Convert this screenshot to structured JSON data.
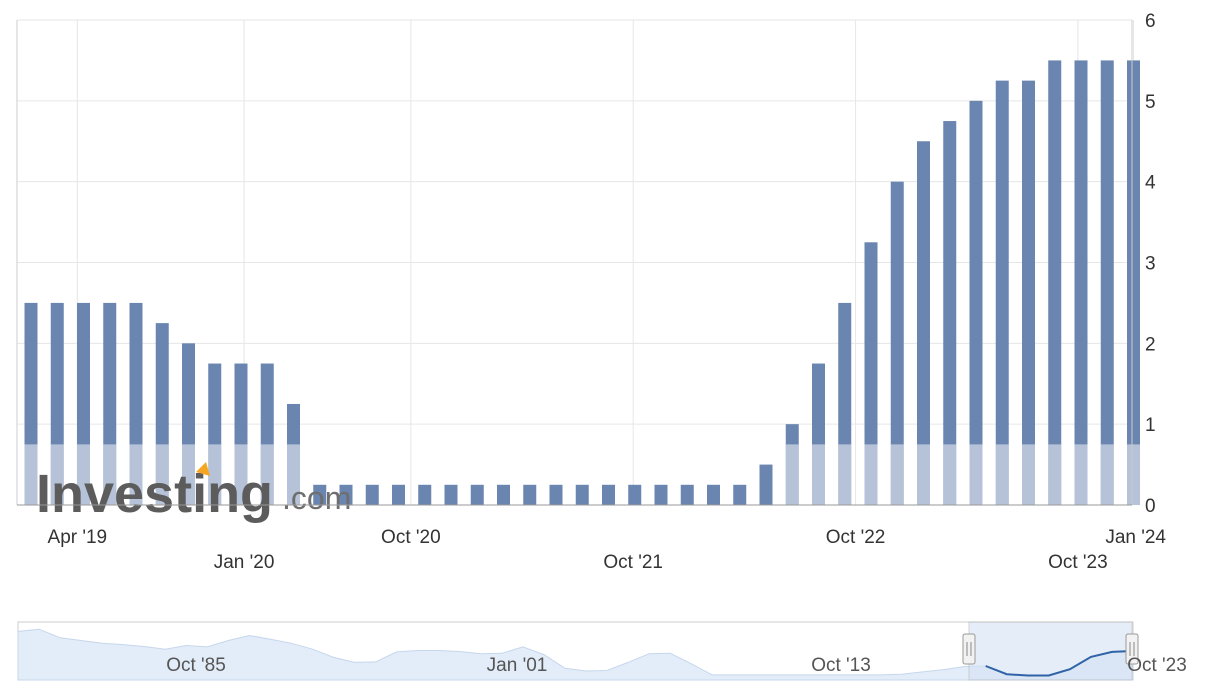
{
  "chart_data": {
    "type": "bar",
    "ylim": [
      0,
      6
    ],
    "y_ticks": [
      "0",
      "1",
      "2",
      "3",
      "4",
      "5",
      "6"
    ],
    "x_tick_labels": [
      {
        "label": "Apr '19",
        "row": 1,
        "date": "2019-04"
      },
      {
        "label": "Jan '20",
        "row": 2,
        "date": "2020-01"
      },
      {
        "label": "Oct '20",
        "row": 1,
        "date": "2020-10"
      },
      {
        "label": "Oct '21",
        "row": 2,
        "date": "2021-10"
      },
      {
        "label": "Oct '22",
        "row": 1,
        "date": "2022-10"
      },
      {
        "label": "Oct '23",
        "row": 2,
        "date": "2023-10"
      },
      {
        "label": "Jan '24",
        "row": 1,
        "date": "2024-01"
      }
    ],
    "grid": true,
    "y_axis_side": "right",
    "bar_color": "#6a85b0",
    "values": [
      2.5,
      2.5,
      2.5,
      2.5,
      2.5,
      2.25,
      2.0,
      1.75,
      1.75,
      1.75,
      1.25,
      0.25,
      0.25,
      0.25,
      0.25,
      0.25,
      0.25,
      0.25,
      0.25,
      0.25,
      0.25,
      0.25,
      0.25,
      0.25,
      0.25,
      0.25,
      0.25,
      0.25,
      0.5,
      1.0,
      1.75,
      2.5,
      3.25,
      4.0,
      4.5,
      4.75,
      5.0,
      5.25,
      5.25,
      5.5,
      5.5,
      5.5,
      5.5
    ]
  },
  "watermark": {
    "main": "Investing",
    "suffix": ".com"
  },
  "navigator": {
    "labels": [
      "Oct '85",
      "Jan '01",
      "Oct '13",
      "Oct '23"
    ],
    "overview_values": [
      9.8,
      10.3,
      8.4,
      7.8,
      7.2,
      6.9,
      6.5,
      5.9,
      6.7,
      6.4,
      7.8,
      8.9,
      8.1,
      7.2,
      5.9,
      4.1,
      3.0,
      3.1,
      5.3,
      5.6,
      5.6,
      5.4,
      4.9,
      5.0,
      6.4,
      4.7,
      1.7,
      1.1,
      1.2,
      3.0,
      4.9,
      5.0,
      2.7,
      0.25,
      0.25,
      0.25,
      0.25,
      0.25,
      0.25,
      0.25,
      0.25,
      0.25,
      0.4,
      0.9,
      1.4,
      2.1,
      2.2,
      0.4,
      0.1,
      0.1,
      1.5,
      4.2,
      5.3,
      5.5
    ]
  },
  "colors": {
    "bar": "#6a85b0",
    "grid": "#e6e6e6",
    "nav_line": "#2f62a6",
    "nav_fill": "#e3edf9"
  }
}
